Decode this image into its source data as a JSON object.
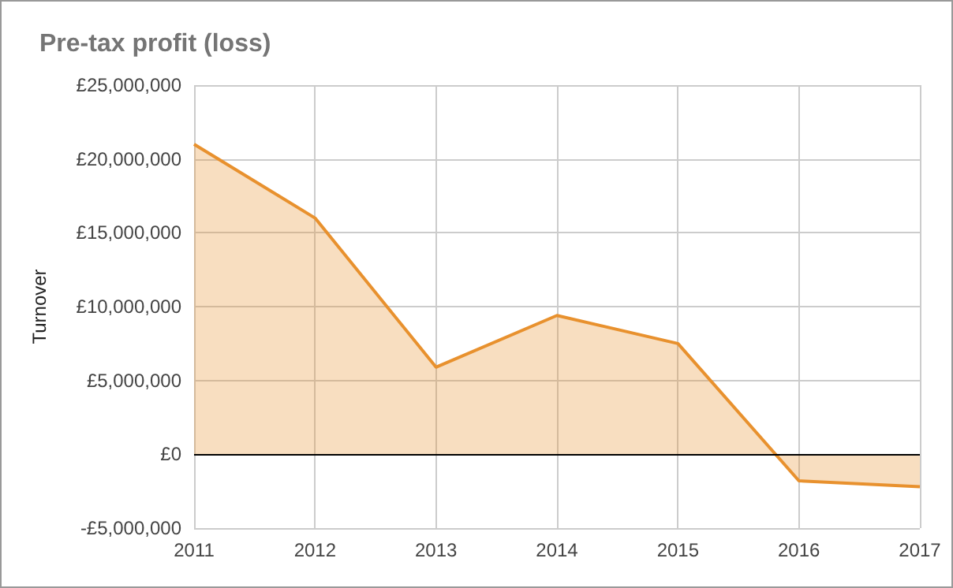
{
  "chart_data": {
    "type": "area",
    "title": "Pre-tax profit (loss)",
    "ylabel": "Turnover",
    "x": [
      2011,
      2012,
      2013,
      2014,
      2015,
      2016,
      2017
    ],
    "series": [
      {
        "color": "#e8912e",
        "values": [
          21000000,
          16000000,
          5900000,
          9400000,
          7500000,
          -1800000,
          -2200000
        ]
      }
    ],
    "xlim": [
      2011,
      2017
    ],
    "xticks": [
      2011,
      2012,
      2013,
      2014,
      2015,
      2016,
      2017
    ],
    "ylim": [
      -5000000,
      25000000
    ],
    "yticks": [
      {
        "value": -5000000,
        "label": "-£5,000,000"
      },
      {
        "value": 0,
        "label": "£0"
      },
      {
        "value": 5000000,
        "label": "£5,000,000"
      },
      {
        "value": 10000000,
        "label": "£10,000,000"
      },
      {
        "value": 15000000,
        "label": "£15,000,000"
      },
      {
        "value": 20000000,
        "label": "£20,000,000"
      },
      {
        "value": 25000000,
        "label": "£25,000,000"
      }
    ],
    "ref_lines": [
      {
        "axis": "y",
        "value": 0,
        "color": "#000000"
      }
    ],
    "grid": true,
    "marker": "none",
    "line_style": "solid"
  }
}
